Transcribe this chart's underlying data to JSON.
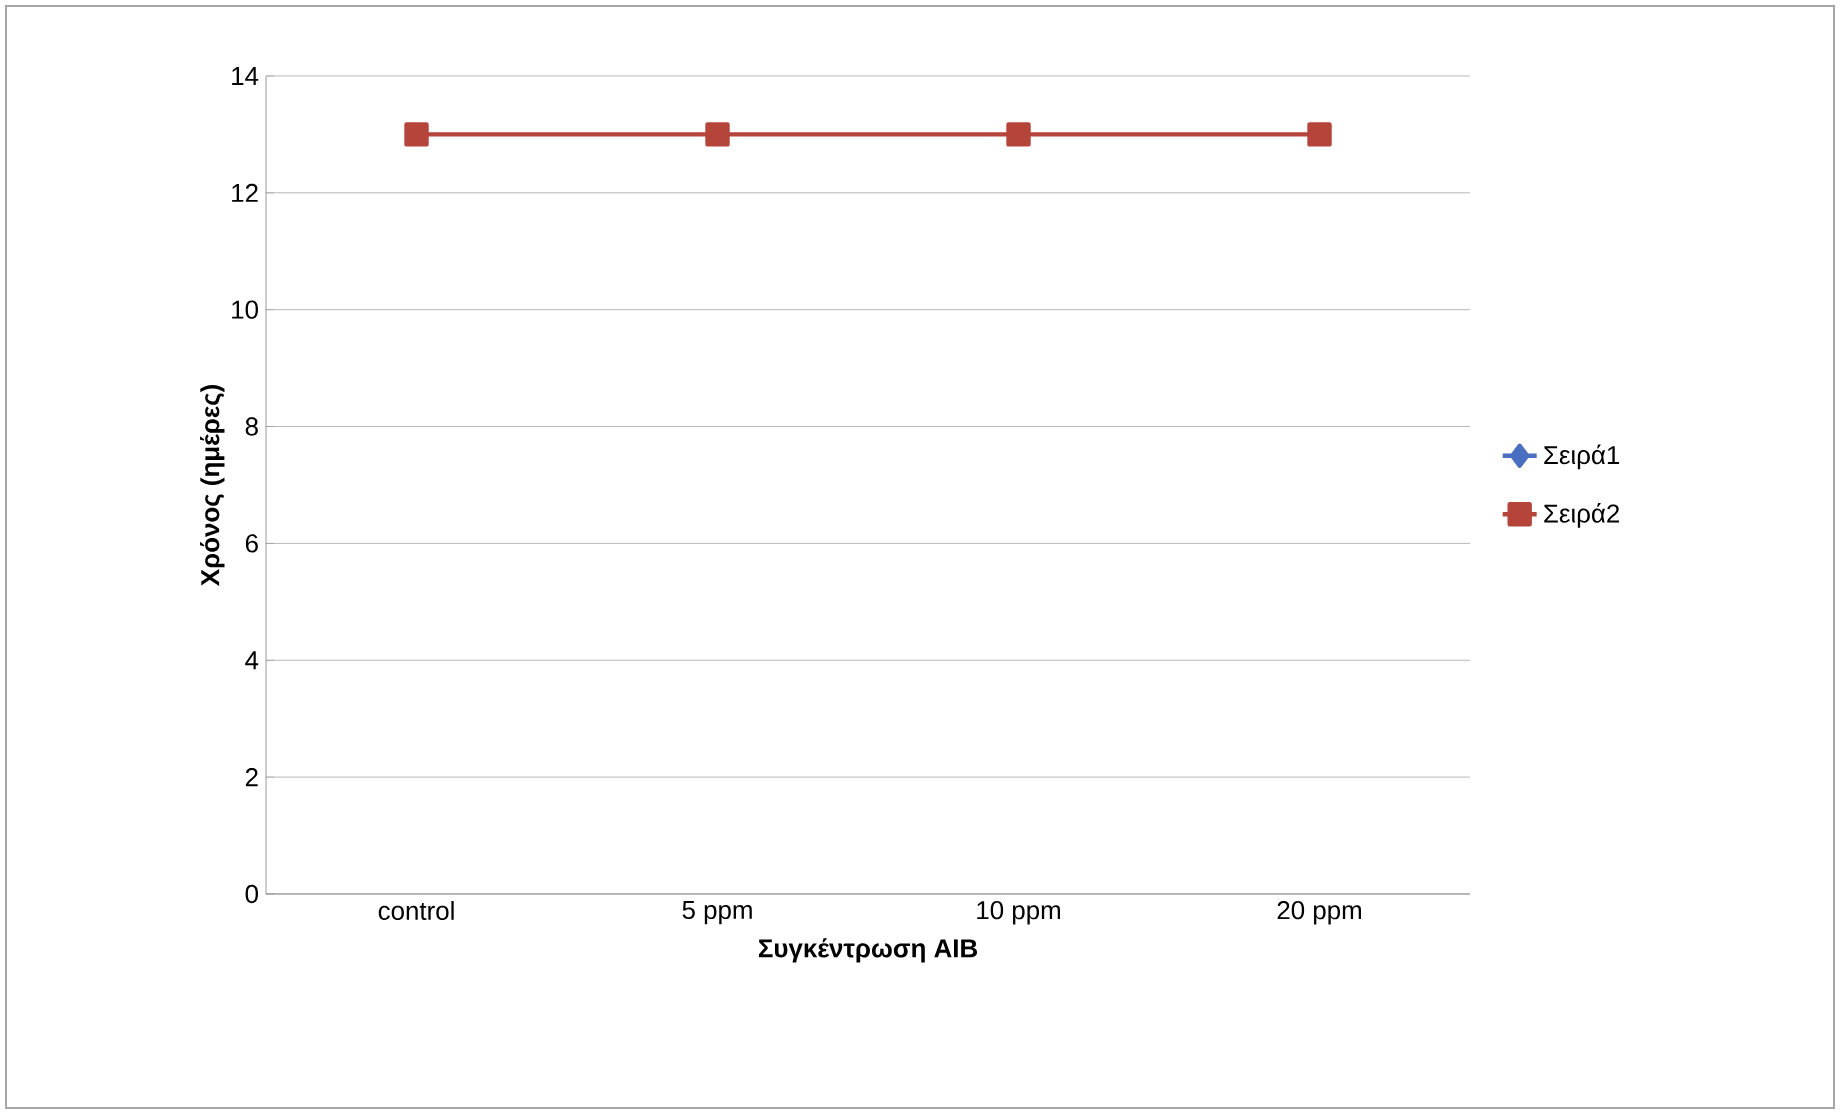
{
  "chart_data": {
    "type": "line",
    "xlabel": "Συγκέντρωση AIB",
    "ylabel": "Χρόνος (ημέρες)",
    "categories": [
      "control",
      "5 ppm",
      "10 ppm",
      "20 ppm"
    ],
    "series": [
      {
        "name": "Σειρά1",
        "color": "#4a6fc0",
        "marker": "diamond",
        "values": [
          null,
          null,
          null,
          null
        ]
      },
      {
        "name": "Σειρά2",
        "color": "#b5443a",
        "marker": "square",
        "values": [
          13,
          13,
          13,
          13
        ]
      }
    ],
    "ylim": [
      0,
      14
    ],
    "yticks": [
      0,
      2,
      4,
      6,
      8,
      10,
      12,
      14
    ],
    "grid": "y",
    "legend": "right"
  }
}
